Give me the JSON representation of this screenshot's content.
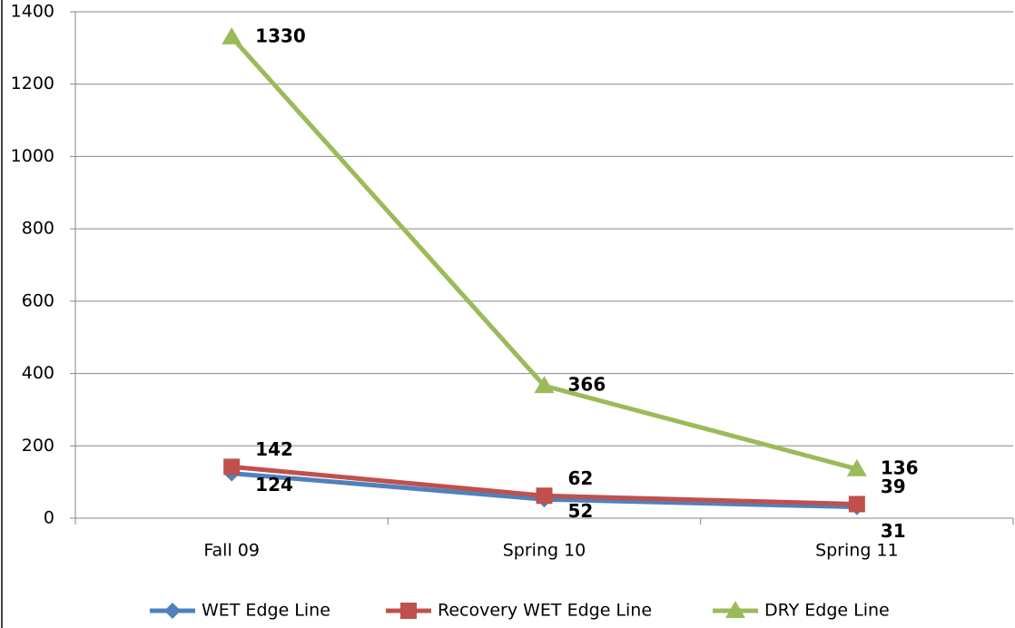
{
  "chart_data": {
    "type": "line",
    "categories": [
      "Fall 09",
      "Spring 10",
      "Spring 11"
    ],
    "series": [
      {
        "name": "WET Edge Line",
        "color": "#4f81bd",
        "marker": "diamond",
        "values": [
          124,
          52,
          31
        ]
      },
      {
        "name": "Recovery WET Edge Line",
        "color": "#c0504d",
        "marker": "square",
        "values": [
          142,
          62,
          39
        ]
      },
      {
        "name": "DRY Edge Line",
        "color": "#9bbb59",
        "marker": "triangle",
        "values": [
          1330,
          366,
          136
        ]
      }
    ],
    "ylim": [
      0,
      1400
    ],
    "yticks": [
      0,
      200,
      400,
      600,
      800,
      1000,
      1200,
      1400
    ],
    "grid": true,
    "legend": "bottom"
  }
}
